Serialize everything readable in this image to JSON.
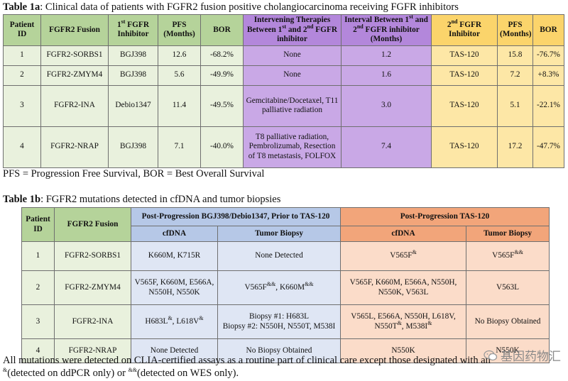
{
  "table1a": {
    "caption_bold": "Table 1a",
    "caption_rest": ": Clinical data of patients with FGFR2 fusion positive cholangiocarcinoma receiving FGFR inhibitors",
    "headers": {
      "patient_id": "Patient ID",
      "fusion": "FGFR2 Fusion",
      "inhibitor1_pre": "1",
      "inhibitor1_sup": "st",
      "inhibitor1_post": " FGFR Inhibitor",
      "pfs": "PFS (Months)",
      "bor": "BOR",
      "therapies_a": "Intervening Therapies Between 1",
      "therapies_sup1": "st",
      "therapies_b": " and 2",
      "therapies_sup2": "nd",
      "therapies_c": " FGFR inhibitor",
      "interval_a": "Interval Between 1",
      "interval_sup1": "st",
      "interval_b": " and 2",
      "interval_sup2": "nd",
      "interval_c": " FGFR inhibitor (Months)",
      "inhibitor2_pre": "2",
      "inhibitor2_sup": "nd",
      "inhibitor2_post": " FGFR Inhibitor",
      "pfs2": "PFS (Months)",
      "bor2": "BOR"
    },
    "rows": [
      {
        "id": "1",
        "fusion": "FGFR2-SORBS1",
        "inh1": "BGJ398",
        "pfs": "12.6",
        "bor": "-68.2%",
        "therapies": "None",
        "interval": "1.2",
        "inh2": "TAS-120",
        "pfs2": "15.8",
        "bor2": "-76.7%"
      },
      {
        "id": "2",
        "fusion": "FGFR2-ZMYM4",
        "inh1": "BGJ398",
        "pfs": "5.6",
        "bor": "-49.9%",
        "therapies": "None",
        "interval": "1.6",
        "inh2": "TAS-120",
        "pfs2": "7.2",
        "bor2": "+8.3%"
      },
      {
        "id": "3",
        "fusion": "FGFR2-INA",
        "inh1": "Debio1347",
        "pfs": "11.4",
        "bor": "-49.5%",
        "therapies": "Gemcitabine/Docetaxel, T11 palliative radiation",
        "interval": "3.0",
        "inh2": "TAS-120",
        "pfs2": "5.1",
        "bor2": "-22.1%"
      },
      {
        "id": "4",
        "fusion": "FGFR2-NRAP",
        "inh1": "BGJ398",
        "pfs": "7.1",
        "bor": "-40.0%",
        "therapies": "T8 palliative radiation, Pembrolizumab, Resection of T8 metastasis, FOLFOX",
        "interval": "7.4",
        "inh2": "TAS-120",
        "pfs2": "17.2",
        "bor2": "-47.7%"
      }
    ],
    "footnote": "PFS = Progression Free Survival, BOR = Best Overall Survival"
  },
  "table1b": {
    "caption_bold": "Table 1b",
    "caption_rest": ": FGFR2 mutations detected in cfDNA and tumor biopsies",
    "headers": {
      "patient_id": "Patient ID",
      "fusion": "FGFR2 Fusion",
      "group_pre": "Post-Progression BGJ398/Debio1347, Prior to TAS-120",
      "group_post": "Post-Progression TAS-120",
      "cfdna": "cfDNA",
      "biopsy": "Tumor Biopsy"
    },
    "rows": [
      {
        "id": "1",
        "fusion": "FGFR2-SORBS1",
        "pre_cf": "K660M, K715R",
        "pre_bx": "None Detected",
        "post_cf": "V565F",
        "post_cf_sup": "&",
        "post_bx": "V565F",
        "post_bx_sup": "&&"
      },
      {
        "id": "2",
        "fusion": "FGFR2-ZMYM4",
        "pre_cf": "V565F, K660M, E566A, N550H, N550K",
        "pre_bx_a": "V565F",
        "pre_bx_sup_a": "&&",
        "pre_bx_b": ", K660M",
        "pre_bx_sup_b": "&&",
        "post_cf": "V565F, K660M, E566A, N550H, N550K, V563L",
        "post_bx": "V563L"
      },
      {
        "id": "3",
        "fusion": "FGFR2-INA",
        "pre_cf_a": "H683L",
        "pre_cf_sup_a": "&",
        "pre_cf_b": ", L618V",
        "pre_cf_sup_b": "&",
        "pre_bx_1": "Biopsy #1: H683L",
        "pre_bx_2": "Biopsy #2: N550H, N550T, M538I",
        "post_cf_1": "V565L, E566A, N550H, L618V,",
        "post_cf_2a": "N550T",
        "post_cf_sup_a": "&",
        "post_cf_2b": ", M538I",
        "post_cf_sup_b": "&",
        "post_bx": "No Biopsy Obtained"
      },
      {
        "id": "4",
        "fusion": "FGFR2-NRAP",
        "pre_cf": "None Detected",
        "pre_bx": "No Biopsy Obtained",
        "post_cf": "N550K",
        "post_bx": "N550K"
      }
    ],
    "note_line1": "All mutations were detected on CLIA-certified assays as a routine part of clinical care except those designated with an",
    "note_sup1": "&",
    "note_mid": "(detected on ddPCR only) or ",
    "note_sup2": "&&",
    "note_end": "(detected on WES only)."
  },
  "watermark": {
    "text": "基因药物汇",
    "icon": "wechat-icon"
  }
}
